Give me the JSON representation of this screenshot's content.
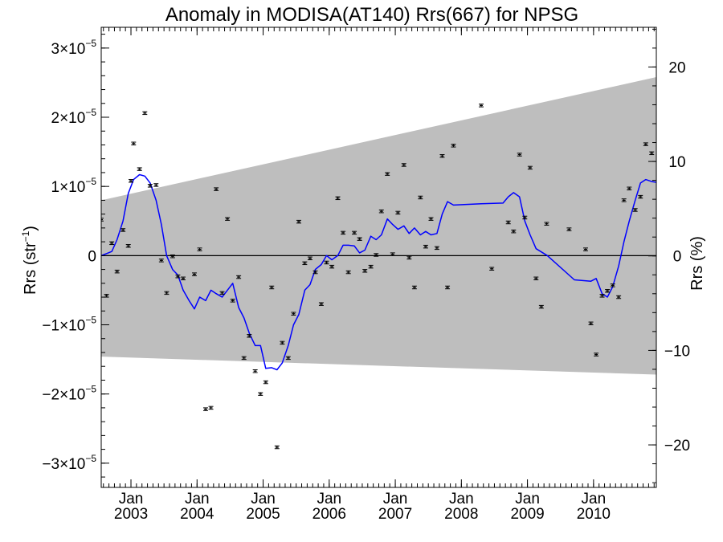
{
  "chart_data": {
    "type": "line",
    "title": "Anomaly in MODISA(AT140) Rrs(667) for NPSG",
    "ylabel_left": {
      "text": "Rrs (str",
      "sup": "−1",
      "close": ")"
    },
    "ylabel_right": "Rrs (%)",
    "xlim": [
      2002.55,
      2010.95
    ],
    "ylim_left": [
      -3.35e-05,
      3.3e-05
    ],
    "ylim_right": [
      -24.5,
      24.2
    ],
    "left_ticks": [
      {
        "value": -3e-05,
        "mantissa": "−3×10",
        "exp": "−5"
      },
      {
        "value": -2e-05,
        "mantissa": "−2×10",
        "exp": "−5"
      },
      {
        "value": -1e-05,
        "mantissa": "−1×10",
        "exp": "−5"
      },
      {
        "value": 0,
        "mantissa": "0",
        "exp": ""
      },
      {
        "value": 1e-05,
        "mantissa": "1×10",
        "exp": "−5"
      },
      {
        "value": 2e-05,
        "mantissa": "2×10",
        "exp": "−5"
      },
      {
        "value": 3e-05,
        "mantissa": "3×10",
        "exp": "−5"
      }
    ],
    "right_ticks": [
      {
        "value": -20,
        "label": "−20"
      },
      {
        "value": -10,
        "label": "−10"
      },
      {
        "value": 0,
        "label": "0"
      },
      {
        "value": 10,
        "label": "10"
      },
      {
        "value": 20,
        "label": "20"
      }
    ],
    "x_ticks": [
      {
        "value": 2003.0,
        "month": "Jan",
        "year": "2003"
      },
      {
        "value": 2004.0,
        "month": "Jan",
        "year": "2004"
      },
      {
        "value": 2005.0,
        "month": "Jan",
        "year": "2005"
      },
      {
        "value": 2006.0,
        "month": "Jan",
        "year": "2006"
      },
      {
        "value": 2007.0,
        "month": "Jan",
        "year": "2007"
      },
      {
        "value": 2008.0,
        "month": "Jan",
        "year": "2008"
      },
      {
        "value": 2009.0,
        "month": "Jan",
        "year": "2009"
      },
      {
        "value": 2010.0,
        "month": "Jan",
        "year": "2010"
      }
    ],
    "band": {
      "color": "#bebebe",
      "upper": [
        [
          2002.55,
          8e-06
        ],
        [
          2010.95,
          2.58e-05
        ]
      ],
      "lower": [
        [
          2002.55,
          -1.46e-05
        ],
        [
          2010.95,
          -1.72e-05
        ]
      ]
    },
    "zero_line": 0,
    "series": [
      {
        "kind": "line",
        "color": "#0000ff",
        "points": [
          [
            2002.55,
            0.0
          ],
          [
            2002.63,
            3e-07
          ],
          [
            2002.71,
            6e-07
          ],
          [
            2002.79,
            2.3e-06
          ],
          [
            2002.88,
            5e-06
          ],
          [
            2002.96,
            9e-06
          ],
          [
            2003.04,
            1.1e-05
          ],
          [
            2003.13,
            1.17e-05
          ],
          [
            2003.21,
            1.15e-05
          ],
          [
            2003.29,
            1.05e-05
          ],
          [
            2003.38,
            8e-06
          ],
          [
            2003.46,
            4.5e-06
          ],
          [
            2003.54,
            0.0
          ],
          [
            2003.63,
            -2e-06
          ],
          [
            2003.71,
            -2.8e-06
          ],
          [
            2003.79,
            -5e-06
          ],
          [
            2003.88,
            -6.5e-06
          ],
          [
            2003.96,
            -7.7e-06
          ],
          [
            2004.04,
            -6e-06
          ],
          [
            2004.13,
            -6.5e-06
          ],
          [
            2004.21,
            -5e-06
          ],
          [
            2004.29,
            -5.5e-06
          ],
          [
            2004.38,
            -6e-06
          ],
          [
            2004.46,
            -5e-06
          ],
          [
            2004.54,
            -4e-06
          ],
          [
            2004.63,
            -7.5e-06
          ],
          [
            2004.71,
            -9e-06
          ],
          [
            2004.79,
            -1.12e-05
          ],
          [
            2004.88,
            -1.3e-05
          ],
          [
            2004.96,
            -1.3e-05
          ],
          [
            2005.04,
            -1.63e-05
          ],
          [
            2005.13,
            -1.62e-05
          ],
          [
            2005.21,
            -1.65e-05
          ],
          [
            2005.29,
            -1.55e-05
          ],
          [
            2005.38,
            -1.3e-05
          ],
          [
            2005.46,
            -1e-05
          ],
          [
            2005.54,
            -8.5e-06
          ],
          [
            2005.63,
            -5e-06
          ],
          [
            2005.71,
            -4.2e-06
          ],
          [
            2005.79,
            -2e-06
          ],
          [
            2005.88,
            -1.3e-06
          ],
          [
            2005.96,
            0.0
          ],
          [
            2006.04,
            -6e-07
          ],
          [
            2006.13,
            0.0
          ],
          [
            2006.21,
            1.5e-06
          ],
          [
            2006.29,
            1.5e-06
          ],
          [
            2006.38,
            1.4e-06
          ],
          [
            2006.46,
            4e-07
          ],
          [
            2006.54,
            8e-07
          ],
          [
            2006.63,
            2.8e-06
          ],
          [
            2006.71,
            2.3e-06
          ],
          [
            2006.79,
            3e-06
          ],
          [
            2006.88,
            5.3e-06
          ],
          [
            2006.96,
            4.5e-06
          ],
          [
            2007.04,
            3.8e-06
          ],
          [
            2007.13,
            4.3e-06
          ],
          [
            2007.21,
            3.2e-06
          ],
          [
            2007.29,
            4e-06
          ],
          [
            2007.38,
            3e-06
          ],
          [
            2007.46,
            3.5e-06
          ],
          [
            2007.54,
            3e-06
          ],
          [
            2007.63,
            3.2e-06
          ],
          [
            2007.71,
            6e-06
          ],
          [
            2007.79,
            7.8e-06
          ],
          [
            2007.88,
            7.3e-06
          ],
          [
            2008.3,
            7.5e-06
          ],
          [
            2008.63,
            7.6e-06
          ],
          [
            2008.71,
            8.5e-06
          ],
          [
            2008.79,
            9.1e-06
          ],
          [
            2008.88,
            8.5e-06
          ],
          [
            2008.96,
            5e-06
          ],
          [
            2009.04,
            3e-06
          ],
          [
            2009.13,
            1e-06
          ],
          [
            2009.3,
            0.0
          ],
          [
            2009.71,
            -3.5e-06
          ],
          [
            2009.96,
            -3.7e-06
          ],
          [
            2010.04,
            -3.3e-06
          ],
          [
            2010.13,
            -5.5e-06
          ],
          [
            2010.21,
            -6e-06
          ],
          [
            2010.29,
            -4.5e-06
          ],
          [
            2010.38,
            -1.5e-06
          ],
          [
            2010.46,
            2e-06
          ],
          [
            2010.54,
            5e-06
          ],
          [
            2010.63,
            8e-06
          ],
          [
            2010.71,
            1.05e-05
          ],
          [
            2010.79,
            1.1e-05
          ],
          [
            2010.88,
            1.07e-05
          ],
          [
            2010.95,
            1.06e-05
          ]
        ]
      },
      {
        "kind": "points",
        "color": "#000000",
        "error": 2e-07,
        "points": [
          [
            2002.55,
            5.2e-06
          ],
          [
            2002.63,
            -5.8e-06
          ],
          [
            2002.71,
            1.8e-06
          ],
          [
            2002.79,
            -2.3e-06
          ],
          [
            2002.88,
            3.7e-06
          ],
          [
            2002.96,
            1.4e-06
          ],
          [
            2003.0,
            1.08e-05
          ],
          [
            2003.04,
            1.62e-05
          ],
          [
            2003.13,
            1.25e-05
          ],
          [
            2003.21,
            2.06e-05
          ],
          [
            2003.29,
            1.01e-05
          ],
          [
            2003.38,
            1.02e-05
          ],
          [
            2003.46,
            -7e-07
          ],
          [
            2003.54,
            -5.4e-06
          ],
          [
            2003.63,
            -1e-07
          ],
          [
            2003.71,
            -3e-06
          ],
          [
            2003.79,
            -3.3e-06
          ],
          [
            2003.96,
            -2.7e-06
          ],
          [
            2004.04,
            9e-07
          ],
          [
            2004.13,
            -2.22e-05
          ],
          [
            2004.21,
            -2.2e-05
          ],
          [
            2004.29,
            9.6e-06
          ],
          [
            2004.38,
            -5.4e-06
          ],
          [
            2004.46,
            5.3e-06
          ],
          [
            2004.54,
            -6.5e-06
          ],
          [
            2004.63,
            -3.1e-06
          ],
          [
            2004.71,
            -1.48e-05
          ],
          [
            2004.79,
            -1.16e-05
          ],
          [
            2004.88,
            -1.67e-05
          ],
          [
            2004.96,
            -2e-05
          ],
          [
            2005.04,
            -1.83e-05
          ],
          [
            2005.13,
            -4.6e-06
          ],
          [
            2005.21,
            -2.77e-05
          ],
          [
            2005.29,
            -1.26e-05
          ],
          [
            2005.38,
            -1.48e-05
          ],
          [
            2005.46,
            -8.4e-06
          ],
          [
            2005.54,
            4.9e-06
          ],
          [
            2005.63,
            -1.1e-06
          ],
          [
            2005.71,
            -4e-07
          ],
          [
            2005.79,
            -2.4e-06
          ],
          [
            2005.88,
            -7e-06
          ],
          [
            2005.96,
            -1e-06
          ],
          [
            2006.04,
            -1.6e-06
          ],
          [
            2006.13,
            8.3e-06
          ],
          [
            2006.21,
            3.3e-06
          ],
          [
            2006.29,
            -2.4e-06
          ],
          [
            2006.38,
            3.3e-06
          ],
          [
            2006.46,
            2.4e-06
          ],
          [
            2006.54,
            -2.2e-06
          ],
          [
            2006.63,
            -1.6e-06
          ],
          [
            2006.71,
            1e-07
          ],
          [
            2006.79,
            6.4e-06
          ],
          [
            2006.88,
            1.18e-05
          ],
          [
            2006.96,
            2e-07
          ],
          [
            2007.04,
            6.2e-06
          ],
          [
            2007.13,
            1.31e-05
          ],
          [
            2007.21,
            -3e-07
          ],
          [
            2007.29,
            -4.6e-06
          ],
          [
            2007.38,
            8.4e-06
          ],
          [
            2007.46,
            1.3e-06
          ],
          [
            2007.54,
            5.3e-06
          ],
          [
            2007.63,
            1.1e-06
          ],
          [
            2007.71,
            1.44e-05
          ],
          [
            2007.79,
            -4.6e-06
          ],
          [
            2007.88,
            1.59e-05
          ],
          [
            2008.3,
            2.17e-05
          ],
          [
            2008.46,
            -1.9e-06
          ],
          [
            2008.71,
            4.8e-06
          ],
          [
            2008.79,
            3.5e-06
          ],
          [
            2008.88,
            1.46e-05
          ],
          [
            2008.96,
            5.5e-06
          ],
          [
            2009.04,
            1.27e-05
          ],
          [
            2009.13,
            -3.3e-06
          ],
          [
            2009.21,
            -7.4e-06
          ],
          [
            2009.29,
            4.6e-06
          ],
          [
            2009.63,
            3.8e-06
          ],
          [
            2009.88,
            9e-07
          ],
          [
            2009.96,
            -9.8e-06
          ],
          [
            2010.04,
            -1.43e-05
          ],
          [
            2010.13,
            -5.8e-06
          ],
          [
            2010.21,
            -5.1e-06
          ],
          [
            2010.29,
            -4.3e-06
          ],
          [
            2010.38,
            -6e-06
          ],
          [
            2010.46,
            8e-06
          ],
          [
            2010.54,
            9.7e-06
          ],
          [
            2010.63,
            6.6e-06
          ],
          [
            2010.71,
            8.5e-06
          ],
          [
            2010.79,
            1.61e-05
          ],
          [
            2010.88,
            1.48e-05
          ]
        ]
      }
    ]
  }
}
